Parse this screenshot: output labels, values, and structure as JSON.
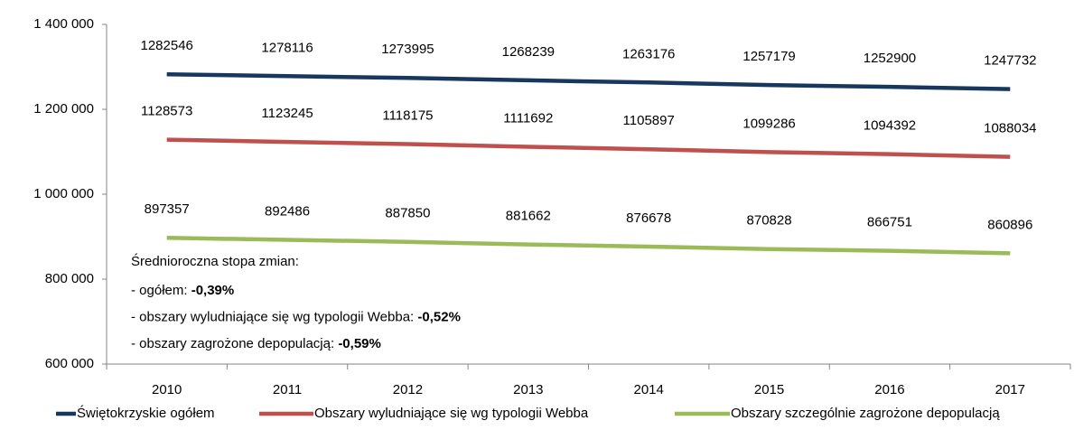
{
  "chart_data": {
    "type": "line",
    "categories": [
      "2010",
      "2011",
      "2012",
      "2013",
      "2014",
      "2015",
      "2016",
      "2017"
    ],
    "series": [
      {
        "name": "Świętokrzyskie ogółem",
        "color": "#17375e",
        "values": [
          1282546,
          1278116,
          1273995,
          1268239,
          1263176,
          1257179,
          1252900,
          1247732
        ]
      },
      {
        "name": "Obszary wyludniające się wg typologii Webba",
        "color": "#c0504d",
        "values": [
          1128573,
          1123245,
          1118175,
          1111692,
          1105897,
          1099286,
          1094392,
          1088034
        ]
      },
      {
        "name": "Obszary szczególnie zagrożone depopulacją",
        "color": "#9bbb59",
        "values": [
          897357,
          892486,
          887850,
          881662,
          876678,
          870828,
          866751,
          860896
        ]
      }
    ],
    "ylim": [
      600000,
      1400000
    ],
    "yticks": [
      {
        "value": 600000,
        "label": "600 000"
      },
      {
        "value": 800000,
        "label": "800 000"
      },
      {
        "value": 1000000,
        "label": "1 000 000"
      },
      {
        "value": 1200000,
        "label": "1 200 000"
      },
      {
        "value": 1400000,
        "label": "1 400 000"
      }
    ],
    "grid": false,
    "legend": "bottom",
    "annotation": {
      "title": "Średnioroczna stopa zmian:",
      "items": [
        {
          "text": "- ogółem: ",
          "value": "-0,39%"
        },
        {
          "text": "- obszary wyludniające się wg typologii Webba: ",
          "value": "-0,52%"
        },
        {
          "text": "- obszary zagrożone depopulacją: ",
          "value": "-0,59%"
        }
      ]
    }
  }
}
